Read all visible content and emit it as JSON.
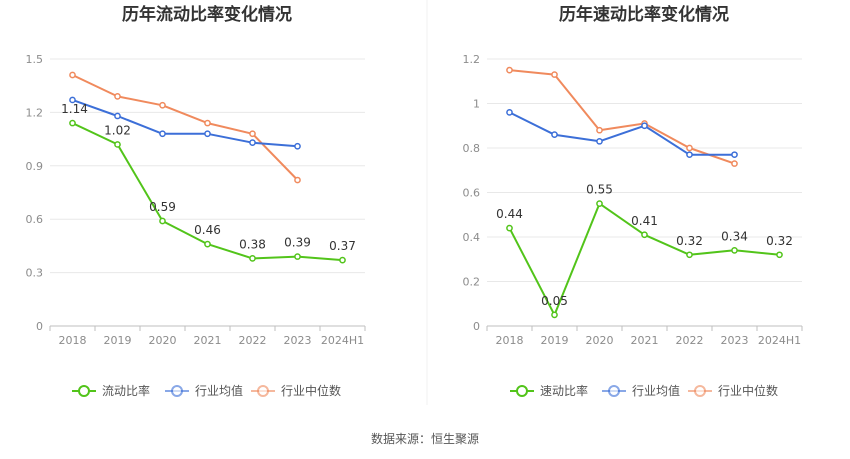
{
  "source_text": "数据来源：恒生聚源",
  "chart_data": [
    {
      "type": "line",
      "title": "历年流动比率变化情况",
      "categories": [
        "2018",
        "2019",
        "2020",
        "2021",
        "2022",
        "2023",
        "2024H1"
      ],
      "ylim": [
        0,
        1.5
      ],
      "yticks": [
        "0",
        "0.3",
        "0.6",
        "0.9",
        "1.2",
        "1.5"
      ],
      "ytick_values": [
        0,
        0.3,
        0.6,
        0.9,
        1.2,
        1.5
      ],
      "grid": true,
      "legend_position": "bottom",
      "series": [
        {
          "name": "流动比率",
          "color": "#52c41a",
          "values": [
            1.14,
            1.02,
            0.59,
            0.46,
            0.38,
            0.39,
            0.37
          ],
          "labels": [
            "1.14",
            "1.02",
            "0.59",
            "0.46",
            "0.38",
            "0.39",
            "0.37"
          ]
        },
        {
          "name": "行业均值",
          "color": "#3c6fd8",
          "values": [
            1.27,
            1.18,
            1.08,
            1.08,
            1.03,
            1.01,
            null
          ]
        },
        {
          "name": "行业中位数",
          "color": "#f08a5d",
          "values": [
            1.41,
            1.29,
            1.24,
            1.14,
            1.08,
            0.82,
            null
          ]
        }
      ]
    },
    {
      "type": "line",
      "title": "历年速动比率变化情况",
      "categories": [
        "2018",
        "2019",
        "2020",
        "2021",
        "2022",
        "2023",
        "2024H1"
      ],
      "ylim": [
        0,
        1.2
      ],
      "yticks": [
        "0",
        "0.2",
        "0.4",
        "0.6",
        "0.8",
        "1",
        "1.2"
      ],
      "ytick_values": [
        0,
        0.2,
        0.4,
        0.6,
        0.8,
        1.0,
        1.2
      ],
      "grid": true,
      "legend_position": "bottom",
      "series": [
        {
          "name": "速动比率",
          "color": "#52c41a",
          "values": [
            0.44,
            0.05,
            0.55,
            0.41,
            0.32,
            0.34,
            0.32
          ],
          "labels": [
            "0.44",
            "0.05",
            "0.55",
            "0.41",
            "0.32",
            "0.34",
            "0.32"
          ]
        },
        {
          "name": "行业均值",
          "color": "#3c6fd8",
          "values": [
            0.96,
            0.86,
            0.83,
            0.9,
            0.77,
            0.77,
            null
          ]
        },
        {
          "name": "行业中位数",
          "color": "#f08a5d",
          "values": [
            1.15,
            1.13,
            0.88,
            0.91,
            0.8,
            0.73,
            null
          ]
        }
      ]
    }
  ]
}
